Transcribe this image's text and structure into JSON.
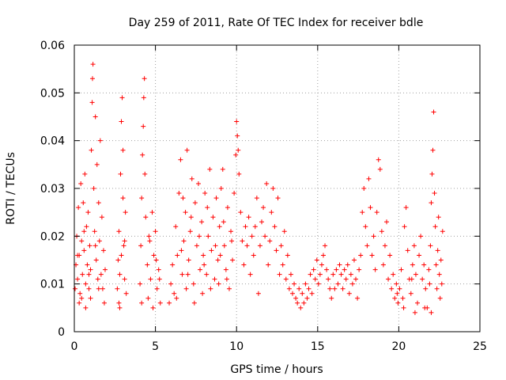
{
  "chart_data": {
    "type": "scatter",
    "title": "Day 259 of 2011, Rate Of TEC Index for receiver bdle",
    "xlabel": "GPS time / hours",
    "ylabel": "ROTI / TECUs",
    "xlim": [
      0,
      25
    ],
    "ylim": [
      0,
      0.06
    ],
    "xticks": [
      0,
      5,
      10,
      15,
      20,
      25
    ],
    "xtick_labels": [
      "0",
      "5",
      "10",
      "15",
      "20",
      "25"
    ],
    "yticks": [
      0,
      0.01,
      0.02,
      0.03,
      0.04,
      0.05,
      0.06
    ],
    "ytick_labels": [
      "0",
      "0.01",
      "0.02",
      "0.03",
      "0.04",
      "0.05",
      "0.06"
    ],
    "grid": true,
    "marker": "+",
    "color": "#ff0000",
    "series": [
      {
        "name": "ROTI",
        "points": [
          [
            0.05,
            0.009
          ],
          [
            0.1,
            0.014
          ],
          [
            0.15,
            0.02
          ],
          [
            0.2,
            0.011
          ],
          [
            0.25,
            0.026
          ],
          [
            0.3,
            0.016
          ],
          [
            0.35,
            0.008
          ],
          [
            0.4,
            0.031
          ],
          [
            0.45,
            0.019
          ],
          [
            0.5,
            0.012
          ],
          [
            0.55,
            0.027
          ],
          [
            0.6,
            0.017
          ],
          [
            0.65,
            0.033
          ],
          [
            0.7,
            0.01
          ],
          [
            0.75,
            0.022
          ],
          [
            0.8,
            0.014
          ],
          [
            0.85,
            0.025
          ],
          [
            0.9,
            0.009
          ],
          [
            0.95,
            0.018
          ],
          [
            1.0,
            0.013
          ],
          [
            1.05,
            0.038
          ],
          [
            1.1,
            0.048
          ],
          [
            1.12,
            0.053
          ],
          [
            1.15,
            0.056
          ],
          [
            1.2,
            0.03
          ],
          [
            1.25,
            0.021
          ],
          [
            1.3,
            0.045
          ],
          [
            1.35,
            0.015
          ],
          [
            1.4,
            0.035
          ],
          [
            1.45,
            0.011
          ],
          [
            1.5,
            0.027
          ],
          [
            1.55,
            0.019
          ],
          [
            1.6,
            0.04
          ],
          [
            1.65,
            0.012
          ],
          [
            1.7,
            0.024
          ],
          [
            1.75,
            0.009
          ],
          [
            1.8,
            0.017
          ],
          [
            1.85,
            0.006
          ],
          [
            1.9,
            0.013
          ],
          [
            0.3,
            0.006
          ],
          [
            0.7,
            0.005
          ],
          [
            1.0,
            0.007
          ],
          [
            0.2,
            0.016
          ],
          [
            0.6,
            0.021
          ],
          [
            1.3,
            0.018
          ],
          [
            1.5,
            0.009
          ],
          [
            0.9,
            0.012
          ],
          [
            0.45,
            0.007
          ],
          [
            2.65,
            0.009
          ],
          [
            2.7,
            0.015
          ],
          [
            2.75,
            0.021
          ],
          [
            2.8,
            0.012
          ],
          [
            2.85,
            0.033
          ],
          [
            2.9,
            0.044
          ],
          [
            2.95,
            0.049
          ],
          [
            3.0,
            0.028
          ],
          [
            3.05,
            0.018
          ],
          [
            3.1,
            0.011
          ],
          [
            3.15,
            0.025
          ],
          [
            3.2,
            0.008
          ],
          [
            2.75,
            0.006
          ],
          [
            3.0,
            0.038
          ],
          [
            2.9,
            0.016
          ],
          [
            3.1,
            0.019
          ],
          [
            2.8,
            0.005
          ],
          [
            4.05,
            0.01
          ],
          [
            4.1,
            0.018
          ],
          [
            4.15,
            0.028
          ],
          [
            4.2,
            0.037
          ],
          [
            4.25,
            0.043
          ],
          [
            4.28,
            0.049
          ],
          [
            4.32,
            0.053
          ],
          [
            4.4,
            0.024
          ],
          [
            4.5,
            0.014
          ],
          [
            4.6,
            0.02
          ],
          [
            4.7,
            0.011
          ],
          [
            4.8,
            0.025
          ],
          [
            4.9,
            0.016
          ],
          [
            5.0,
            0.021
          ],
          [
            5.1,
            0.009
          ],
          [
            5.2,
            0.013
          ],
          [
            5.3,
            0.006
          ],
          [
            4.55,
            0.007
          ],
          [
            4.35,
            0.033
          ],
          [
            4.85,
            0.005
          ],
          [
            5.05,
            0.015
          ],
          [
            4.65,
            0.019
          ],
          [
            5.25,
            0.011
          ],
          [
            4.15,
            0.006
          ],
          [
            5.85,
            0.006
          ],
          [
            5.95,
            0.01
          ],
          [
            6.05,
            0.014
          ],
          [
            6.15,
            0.008
          ],
          [
            6.25,
            0.022
          ],
          [
            6.35,
            0.016
          ],
          [
            6.45,
            0.029
          ],
          [
            6.55,
            0.036
          ],
          [
            6.65,
            0.012
          ],
          [
            6.75,
            0.019
          ],
          [
            6.85,
            0.025
          ],
          [
            6.95,
            0.038
          ],
          [
            7.05,
            0.015
          ],
          [
            7.15,
            0.021
          ],
          [
            7.25,
            0.032
          ],
          [
            7.35,
            0.01
          ],
          [
            7.45,
            0.027
          ],
          [
            7.55,
            0.018
          ],
          [
            7.65,
            0.031
          ],
          [
            7.75,
            0.013
          ],
          [
            7.85,
            0.023
          ],
          [
            7.95,
            0.016
          ],
          [
            8.05,
            0.029
          ],
          [
            8.15,
            0.012
          ],
          [
            8.25,
            0.02
          ],
          [
            8.35,
            0.034
          ],
          [
            8.45,
            0.017
          ],
          [
            8.55,
            0.024
          ],
          [
            8.65,
            0.011
          ],
          [
            8.75,
            0.028
          ],
          [
            8.85,
            0.015
          ],
          [
            8.95,
            0.022
          ],
          [
            9.05,
            0.03
          ],
          [
            9.15,
            0.034
          ],
          [
            9.25,
            0.018
          ],
          [
            9.35,
            0.013
          ],
          [
            9.45,
            0.026
          ],
          [
            9.55,
            0.009
          ],
          [
            9.65,
            0.021
          ],
          [
            9.75,
            0.015
          ],
          [
            9.85,
            0.029
          ],
          [
            9.95,
            0.037
          ],
          [
            10.0,
            0.044
          ],
          [
            10.05,
            0.041
          ],
          [
            10.1,
            0.038
          ],
          [
            10.15,
            0.033
          ],
          [
            10.25,
            0.025
          ],
          [
            10.35,
            0.019
          ],
          [
            10.45,
            0.014
          ],
          [
            10.55,
            0.022
          ],
          [
            6.3,
            0.007
          ],
          [
            6.9,
            0.009
          ],
          [
            7.4,
            0.006
          ],
          [
            7.9,
            0.008
          ],
          [
            8.4,
            0.009
          ],
          [
            8.9,
            0.01
          ],
          [
            9.4,
            0.011
          ],
          [
            6.7,
            0.028
          ],
          [
            7.2,
            0.024
          ],
          [
            7.7,
            0.02
          ],
          [
            8.2,
            0.026
          ],
          [
            8.7,
            0.018
          ],
          [
            9.2,
            0.023
          ],
          [
            9.7,
            0.019
          ],
          [
            7.0,
            0.012
          ],
          [
            8.0,
            0.014
          ],
          [
            9.0,
            0.016
          ],
          [
            6.6,
            0.017
          ],
          [
            10.65,
            0.018
          ],
          [
            10.75,
            0.024
          ],
          [
            10.85,
            0.012
          ],
          [
            10.95,
            0.02
          ],
          [
            11.05,
            0.016
          ],
          [
            11.15,
            0.022
          ],
          [
            11.25,
            0.028
          ],
          [
            11.35,
            0.008
          ],
          [
            11.45,
            0.018
          ],
          [
            11.55,
            0.023
          ],
          [
            11.65,
            0.026
          ],
          [
            11.75,
            0.02
          ],
          [
            11.85,
            0.031
          ],
          [
            11.95,
            0.014
          ],
          [
            12.05,
            0.019
          ],
          [
            12.15,
            0.025
          ],
          [
            12.25,
            0.03
          ],
          [
            12.35,
            0.022
          ],
          [
            12.45,
            0.017
          ],
          [
            12.55,
            0.028
          ],
          [
            12.65,
            0.012
          ],
          [
            12.75,
            0.018
          ],
          [
            12.85,
            0.014
          ],
          [
            12.95,
            0.021
          ],
          [
            13.05,
            0.011
          ],
          [
            13.15,
            0.016
          ],
          [
            13.25,
            0.009
          ],
          [
            13.35,
            0.012
          ],
          [
            13.45,
            0.008
          ],
          [
            13.55,
            0.01
          ],
          [
            13.65,
            0.007
          ],
          [
            13.75,
            0.006
          ],
          [
            13.85,
            0.009
          ],
          [
            13.95,
            0.005
          ],
          [
            14.05,
            0.008
          ],
          [
            14.15,
            0.006
          ],
          [
            14.25,
            0.01
          ],
          [
            14.35,
            0.007
          ],
          [
            14.45,
            0.009
          ],
          [
            14.55,
            0.012
          ],
          [
            14.65,
            0.008
          ],
          [
            14.75,
            0.013
          ],
          [
            14.85,
            0.011
          ],
          [
            14.95,
            0.015
          ],
          [
            15.05,
            0.01
          ],
          [
            15.15,
            0.012
          ],
          [
            15.25,
            0.014
          ],
          [
            15.35,
            0.016
          ],
          [
            15.45,
            0.018
          ],
          [
            15.55,
            0.013
          ],
          [
            15.65,
            0.011
          ],
          [
            15.75,
            0.009
          ],
          [
            15.85,
            0.007
          ],
          [
            15.95,
            0.012
          ],
          [
            16.05,
            0.009
          ],
          [
            16.15,
            0.013
          ],
          [
            16.25,
            0.01
          ],
          [
            16.35,
            0.014
          ],
          [
            16.45,
            0.012
          ],
          [
            16.55,
            0.009
          ],
          [
            16.65,
            0.013
          ],
          [
            16.75,
            0.011
          ],
          [
            16.85,
            0.014
          ],
          [
            16.95,
            0.008
          ],
          [
            17.05,
            0.012
          ],
          [
            17.15,
            0.01
          ],
          [
            17.25,
            0.015
          ],
          [
            17.35,
            0.011
          ],
          [
            17.45,
            0.007
          ],
          [
            17.55,
            0.013
          ],
          [
            17.65,
            0.016
          ],
          [
            17.75,
            0.025
          ],
          [
            17.85,
            0.03
          ],
          [
            17.95,
            0.022
          ],
          [
            18.05,
            0.018
          ],
          [
            18.15,
            0.032
          ],
          [
            18.25,
            0.026
          ],
          [
            18.35,
            0.016
          ],
          [
            18.45,
            0.02
          ],
          [
            18.55,
            0.013
          ],
          [
            18.65,
            0.025
          ],
          [
            18.75,
            0.036
          ],
          [
            18.85,
            0.034
          ],
          [
            18.95,
            0.021
          ],
          [
            19.05,
            0.014
          ],
          [
            19.15,
            0.018
          ],
          [
            19.25,
            0.023
          ],
          [
            19.35,
            0.011
          ],
          [
            19.45,
            0.016
          ],
          [
            19.55,
            0.009
          ],
          [
            19.65,
            0.012
          ],
          [
            19.75,
            0.007
          ],
          [
            19.85,
            0.01
          ],
          [
            19.95,
            0.006
          ],
          [
            20.05,
            0.009
          ],
          [
            20.15,
            0.013
          ],
          [
            20.25,
            0.007
          ],
          [
            20.35,
            0.022
          ],
          [
            20.45,
            0.026
          ],
          [
            20.55,
            0.017
          ],
          [
            20.65,
            0.011
          ],
          [
            20.75,
            0.008
          ],
          [
            20.85,
            0.014
          ],
          [
            20.95,
            0.018
          ],
          [
            21.05,
            0.012
          ],
          [
            21.15,
            0.006
          ],
          [
            21.25,
            0.016
          ],
          [
            21.35,
            0.02
          ],
          [
            21.45,
            0.011
          ],
          [
            21.55,
            0.014
          ],
          [
            21.65,
            0.009
          ],
          [
            21.75,
            0.005
          ],
          [
            21.85,
            0.013
          ],
          [
            21.95,
            0.018
          ],
          [
            22.0,
            0.027
          ],
          [
            22.05,
            0.033
          ],
          [
            22.1,
            0.038
          ],
          [
            22.15,
            0.046
          ],
          [
            22.2,
            0.029
          ],
          [
            22.25,
            0.022
          ],
          [
            22.3,
            0.014
          ],
          [
            22.35,
            0.009
          ],
          [
            22.4,
            0.017
          ],
          [
            22.45,
            0.024
          ],
          [
            22.5,
            0.012
          ],
          [
            22.55,
            0.007
          ],
          [
            22.6,
            0.015
          ],
          [
            22.65,
            0.01
          ],
          [
            22.7,
            0.021
          ],
          [
            20.3,
            0.005
          ],
          [
            21.0,
            0.004
          ],
          [
            21.6,
            0.005
          ],
          [
            22.0,
            0.004
          ],
          [
            19.9,
            0.008
          ],
          [
            20.8,
            0.011
          ],
          [
            21.9,
            0.01
          ]
        ]
      }
    ]
  }
}
